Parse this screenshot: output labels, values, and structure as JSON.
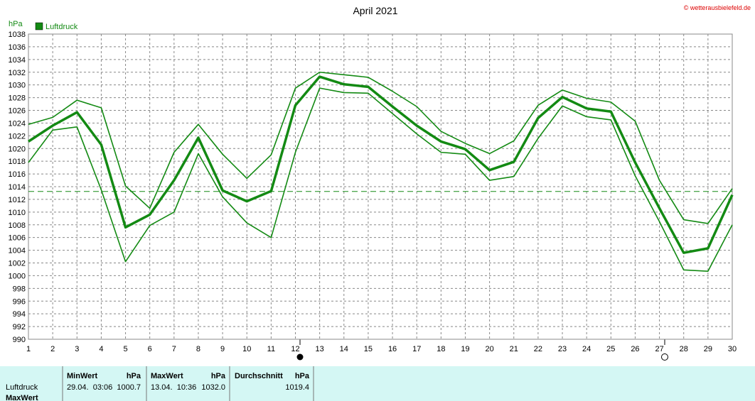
{
  "chart_data": {
    "type": "line",
    "title": "April 2021",
    "y_label": "hPa",
    "watermark": "© wetterausbielefeld.de",
    "categories": [
      "1",
      "2",
      "3",
      "4",
      "5",
      "6",
      "7",
      "8",
      "9",
      "10",
      "11",
      "12",
      "13",
      "14",
      "15",
      "16",
      "17",
      "18",
      "19",
      "20",
      "21",
      "22",
      "23",
      "24",
      "25",
      "26",
      "27",
      "28",
      "29",
      "30"
    ],
    "series": [
      {
        "name": "Luftdruck",
        "color": "#138a13",
        "values": [
          1021.1,
          1023.6,
          1025.7,
          1020.6,
          1007.6,
          1009.6,
          1015.0,
          1021.7,
          1013.4,
          1011.7,
          1013.3,
          1026.8,
          1031.3,
          1030.1,
          1029.7,
          1026.6,
          1023.6,
          1021.1,
          1019.9,
          1016.6,
          1017.9,
          1024.8,
          1028.1,
          1026.3,
          1025.8,
          1017.8,
          1010.6,
          1003.6,
          1004.3,
          1012.7
        ]
      },
      {
        "color": "#138a13",
        "values": [
          1023.8,
          1024.9,
          1027.6,
          1026.4,
          1014.1,
          1010.6,
          1019.4,
          1023.8,
          1019.1,
          1015.3,
          1019.0,
          1029.5,
          1032.0,
          1031.6,
          1031.2,
          1029.0,
          1026.6,
          1022.7,
          1020.8,
          1019.2,
          1021.2,
          1026.8,
          1029.2,
          1027.9,
          1027.3,
          1024.3,
          1015.0,
          1008.8,
          1008.2,
          1013.7
        ]
      },
      {
        "color": "#138a13",
        "values": [
          1017.8,
          1022.9,
          1023.4,
          1013.5,
          1002.2,
          1007.9,
          1010.0,
          1019.2,
          1012.4,
          1008.3,
          1006.0,
          1019.4,
          1029.5,
          1028.8,
          1028.7,
          1025.5,
          1022.3,
          1019.4,
          1019.1,
          1015.0,
          1015.6,
          1021.6,
          1026.7,
          1025.0,
          1024.5,
          1015.7,
          1008.5,
          1000.9,
          1000.7,
          1008.0
        ]
      }
    ],
    "reference_line": 1013.25,
    "ylim": [
      990,
      1038
    ],
    "yticks": [
      990,
      992,
      994,
      996,
      998,
      1000,
      1002,
      1004,
      1006,
      1008,
      1010,
      1012,
      1014,
      1016,
      1018,
      1020,
      1022,
      1024,
      1026,
      1028,
      1030,
      1032,
      1034,
      1036,
      1038
    ],
    "grid": true
  },
  "table": {
    "row_labels": [
      "Luftdruck",
      "MaxWert"
    ],
    "columns": [
      {
        "header": "MinWert",
        "unit": "hPa",
        "time": "29.04.  03:06",
        "value": "1000.7"
      },
      {
        "header": "MaxWert",
        "unit": "hPa",
        "time": "13.04.  10:36",
        "value": "1032.0"
      },
      {
        "header": "Durchschnitt",
        "unit": "hPa",
        "value": "1019.4"
      }
    ]
  }
}
